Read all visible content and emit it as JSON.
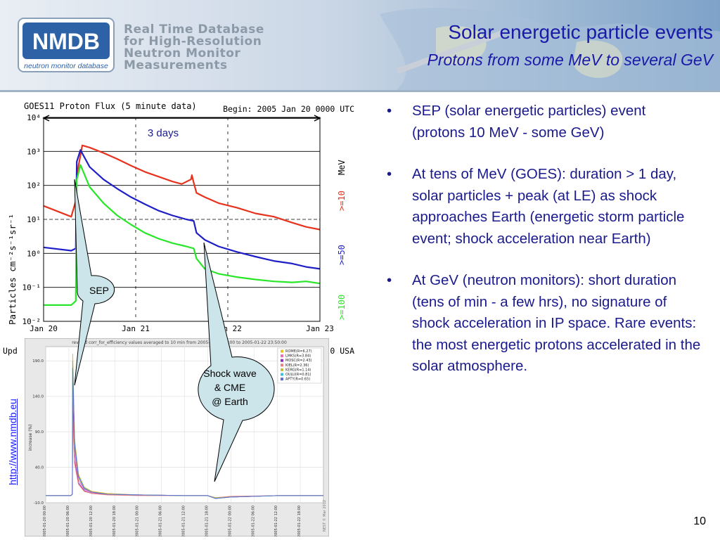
{
  "header": {
    "logo_badge": "NMDB",
    "logo_caption": "neutron monitor database",
    "logo_text": [
      "Real Time Database",
      "for High-Resolution",
      "Neutron Monitor",
      "Measurements"
    ],
    "title": "Solar energetic particle events",
    "subtitle": "Protons from some MeV to several GeV"
  },
  "bullets": [
    "SEP (solar energetic particles) event (protons 10 MeV - some GeV)",
    "At tens of MeV (GOES): duration > 1 day, solar particles + peak (at LE) as shock approaches Earth (energetic storm particle event; shock acceleration near Earth)",
    "At GeV (neutron monitors): short duration (tens of min - a few hrs), no signature of shock acceleration in IP space. Rare events: the most energetic protons accelerated in the solar atmosphere."
  ],
  "bullet_symbol": "•",
  "link": "http://www.nmdb.eu",
  "page_number": "10",
  "callouts": {
    "duration": "3 days",
    "sep": "SEP",
    "shock": [
      "Shock wave",
      "& CME",
      "@ Earth"
    ]
  },
  "colors": {
    "title": "#1a1aa8",
    "bullet_text": "#1a1a8c",
    "callout_fill": "#cce5ea",
    "series_10mev": "#e8321e",
    "series_50mev": "#1f1fc8",
    "series_100mev": "#28e628"
  },
  "chart_data": [
    {
      "type": "line",
      "title": "GOES11 Proton Flux (5 minute data)",
      "begin_label": "Begin: 2005 Jan 20 0000 UTC",
      "ylabel": "Particles cm⁻²s⁻¹sr⁻¹",
      "yscale": "log",
      "ylim": [
        0.01,
        10000
      ],
      "yticks": [
        "10⁻²",
        "10⁻¹",
        "10⁰",
        "10¹",
        "10²",
        "10³",
        "10⁴"
      ],
      "xticks": [
        "Jan 20",
        "Jan 21",
        "Jan 22",
        "Jan 23"
      ],
      "xlim_days": [
        0,
        3
      ],
      "footer_left": "Upd",
      "footer_right": "0 USA",
      "series_unit": "MeV",
      "series": [
        {
          "name": ">=10",
          "color": "#e8321e",
          "x": [
            0,
            0.3,
            0.35,
            0.36,
            0.42,
            0.5,
            0.65,
            0.8,
            0.95,
            1.1,
            1.25,
            1.4,
            1.5,
            1.6,
            1.61,
            1.63,
            1.66,
            1.75,
            1.9,
            2.1,
            2.3,
            2.5,
            2.7,
            2.85,
            3.0
          ],
          "y": [
            25,
            12,
            35,
            200,
            1500,
            1300,
            900,
            600,
            380,
            250,
            180,
            130,
            110,
            150,
            200,
            120,
            60,
            45,
            30,
            22,
            15,
            12,
            8,
            6,
            5
          ]
        },
        {
          "name": ">=50",
          "color": "#1f1fc8",
          "x": [
            0,
            0.3,
            0.35,
            0.36,
            0.4,
            0.5,
            0.65,
            0.8,
            0.95,
            1.1,
            1.25,
            1.4,
            1.55,
            1.63,
            1.66,
            1.75,
            1.9,
            2.1,
            2.3,
            2.5,
            2.7,
            2.85,
            3.0
          ],
          "y": [
            1.5,
            1.2,
            1.4,
            500,
            1100,
            350,
            150,
            80,
            45,
            28,
            18,
            13,
            10,
            9,
            4,
            2.5,
            1.6,
            1.1,
            0.8,
            0.6,
            0.5,
            0.4,
            0.35
          ]
        },
        {
          "name": ">=100",
          "color": "#28e628",
          "x": [
            0,
            0.3,
            0.35,
            0.36,
            0.4,
            0.5,
            0.65,
            0.8,
            0.95,
            1.1,
            1.25,
            1.4,
            1.55,
            1.63,
            1.66,
            1.75,
            1.9,
            2.1,
            2.3,
            2.5,
            2.7,
            2.85,
            3.0
          ],
          "y": [
            0.03,
            0.03,
            0.04,
            150,
            400,
            90,
            30,
            13,
            7,
            4,
            2.7,
            2,
            1.6,
            1.4,
            0.7,
            0.35,
            0.25,
            0.2,
            0.17,
            0.15,
            0.14,
            0.15,
            0.13
          ]
        }
      ]
    },
    {
      "type": "line",
      "title": "revised corr_for_efficiency values averaged to 10 min from 2005-01-2_ 00:00 to 2005-01-22 23:50:00",
      "ylabel": "increase (%)",
      "ylim": [
        -10,
        210
      ],
      "yticks": [
        "-10.0",
        "40.0",
        "90.0",
        "140.0",
        "190.0"
      ],
      "xticks": [
        "2005-01-20 00:00",
        "2005-01-20 06:00",
        "2005-01-20 12:00",
        "2005-01-20 18:00",
        "2005-01-21 00:00",
        "2005-01-21 06:00",
        "2005-01-21 12:00",
        "2005-01-21 18:00",
        "2005-01-22 00:00",
        "2005-01-22 06:00",
        "2005-01-22 12:00",
        "2005-01-22 18:00"
      ],
      "credit": "NEST © Mar 2012",
      "series": [
        {
          "name": "ROME(R=6.27)",
          "color": "#e8c020",
          "x": [
            0,
            6.5,
            6.9,
            7.0,
            7.5,
            8.5,
            10,
            12,
            16,
            24,
            36,
            42,
            44,
            48,
            60,
            72
          ],
          "y": [
            0,
            0,
            2,
            200,
            80,
            30,
            12,
            6,
            3,
            1,
            0,
            0,
            -4,
            -2,
            0,
            0
          ]
        },
        {
          "name": "LMKS(R=3.84)",
          "color": "#e870b0",
          "x": [
            0,
            6.5,
            6.9,
            7.0,
            7.5,
            8.5,
            10,
            12,
            16,
            24,
            36,
            42,
            44,
            48,
            60,
            72
          ],
          "y": [
            0,
            0,
            2,
            150,
            60,
            22,
            9,
            4,
            2,
            1,
            0,
            0,
            -3,
            -2,
            0,
            0
          ]
        },
        {
          "name": "MOSC(R=2.43)",
          "color": "#9030c0",
          "x": [
            0,
            6.5,
            6.9,
            7.0,
            7.5,
            8.5,
            10,
            12,
            16,
            24,
            36,
            42,
            44,
            48,
            60,
            72
          ],
          "y": [
            0,
            0,
            2,
            130,
            50,
            18,
            7,
            3,
            2,
            1,
            0,
            0,
            -4,
            -2,
            0,
            0
          ]
        },
        {
          "name": "KIEL(R=2.36)",
          "color": "#f08080",
          "x": [
            0,
            6.5,
            6.9,
            7.0,
            7.5,
            8.5,
            10,
            12,
            16,
            24,
            36,
            42,
            44,
            48,
            60,
            72
          ],
          "y": [
            0,
            0,
            2,
            110,
            45,
            16,
            6,
            3,
            1,
            0,
            0,
            0,
            -3,
            -1,
            0,
            0
          ]
        },
        {
          "name": "KERG(R=1.14)",
          "color": "#c0c040",
          "x": [
            0,
            6.5,
            6.9,
            7.0,
            7.5,
            8.5,
            10,
            12,
            16,
            24,
            36,
            42,
            44,
            48,
            60,
            72
          ],
          "y": [
            0,
            0,
            2,
            170,
            70,
            26,
            10,
            5,
            2,
            1,
            0,
            0,
            -3,
            -2,
            0,
            0
          ]
        },
        {
          "name": "OULU(R=0.81)",
          "color": "#40c0e0",
          "x": [
            0,
            6.5,
            6.9,
            7.0,
            7.5,
            8.5,
            10,
            12,
            16,
            24,
            36,
            42,
            44,
            48,
            60,
            72
          ],
          "y": [
            0,
            0,
            2,
            190,
            75,
            28,
            11,
            5,
            2,
            1,
            0,
            0,
            -4,
            -2,
            0,
            0
          ]
        },
        {
          "name": "APTY(R=0.65)",
          "color": "#6070d0",
          "x": [
            0,
            6.5,
            6.9,
            7.0,
            7.5,
            8.5,
            10,
            12,
            16,
            24,
            36,
            42,
            44,
            48,
            60,
            72
          ],
          "y": [
            0,
            0,
            2,
            180,
            72,
            27,
            10,
            5,
            2,
            1,
            0,
            0,
            -4,
            -2,
            0,
            0
          ]
        }
      ]
    }
  ]
}
